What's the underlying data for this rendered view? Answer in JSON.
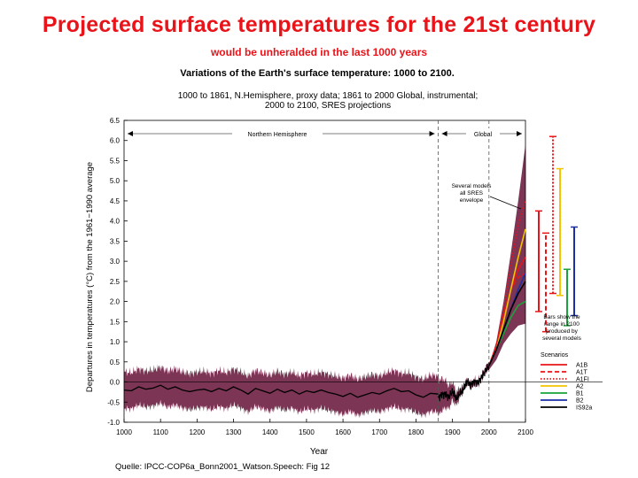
{
  "slide": {
    "title": "Projected surface temperatures for the 21st century",
    "subtitle": "would be unheralded in the last 1000 years",
    "source": "Quelle: IPCC-COP6a_Bonn2001_Watson.Speech: Fig 12"
  },
  "chart_data": {
    "type": "line",
    "title": "Variations of the Earth's surface temperature: 1000 to 2100.",
    "subtitle_lines": [
      "1000 to 1861, N.Hemisphere, proxy data; 1861 to 2000 Global, instrumental;",
      "2000 to 2100, SRES projections"
    ],
    "xlabel": "Year",
    "ylabel": "Departures in temperatures (°C) from the 1961−1990 average",
    "xlim": [
      1000,
      2100
    ],
    "ylim": [
      -1.0,
      6.5
    ],
    "x_ticks": [
      1000,
      1100,
      1200,
      1300,
      1400,
      1500,
      1600,
      1700,
      1800,
      1900,
      2000,
      2100
    ],
    "y_ticks": [
      -1.0,
      -0.5,
      0.0,
      0.5,
      1.0,
      1.5,
      2.0,
      2.5,
      3.0,
      3.5,
      4.0,
      4.5,
      5.0,
      5.5,
      6.0,
      6.5
    ],
    "period_labels": {
      "left": "Northern Hemisphere",
      "right": "Global"
    },
    "reference_lines": {
      "dashed_years": [
        1861,
        2000
      ],
      "zero_line": 0.0
    },
    "annotation_envelope": "Several models all SRES envelope",
    "annotation_bars": "Bars show the range in 2100 produced by several models",
    "band_color": "#7d3555",
    "proxy_series": {
      "x": [
        1000,
        1020,
        1040,
        1060,
        1080,
        1100,
        1120,
        1140,
        1160,
        1180,
        1200,
        1220,
        1240,
        1260,
        1280,
        1300,
        1320,
        1340,
        1360,
        1380,
        1400,
        1420,
        1440,
        1460,
        1480,
        1500,
        1520,
        1540,
        1560,
        1580,
        1600,
        1620,
        1640,
        1660,
        1680,
        1700,
        1720,
        1740,
        1760,
        1780,
        1800,
        1820,
        1840,
        1861
      ],
      "y": [
        -0.2,
        -0.22,
        -0.12,
        -0.18,
        -0.15,
        -0.08,
        -0.18,
        -0.12,
        -0.2,
        -0.24,
        -0.2,
        -0.18,
        -0.24,
        -0.16,
        -0.22,
        -0.12,
        -0.2,
        -0.3,
        -0.16,
        -0.22,
        -0.28,
        -0.18,
        -0.26,
        -0.2,
        -0.3,
        -0.22,
        -0.26,
        -0.2,
        -0.26,
        -0.3,
        -0.36,
        -0.28,
        -0.38,
        -0.32,
        -0.26,
        -0.3,
        -0.22,
        -0.16,
        -0.24,
        -0.22,
        -0.32,
        -0.38,
        -0.28,
        -0.3
      ],
      "uncertainty_halfwidth": 0.45
    },
    "instrumental_series": {
      "x": [
        1861,
        1870,
        1880,
        1890,
        1900,
        1910,
        1920,
        1930,
        1940,
        1950,
        1960,
        1970,
        1980,
        1990,
        2000
      ],
      "y": [
        -0.4,
        -0.32,
        -0.3,
        -0.38,
        -0.22,
        -0.42,
        -0.28,
        -0.18,
        0.02,
        -0.08,
        0.0,
        -0.02,
        0.12,
        0.28,
        0.4
      ]
    },
    "projection_envelope": {
      "x": [
        2000,
        2020,
        2040,
        2060,
        2080,
        2100
      ],
      "low": [
        0.3,
        0.55,
        0.95,
        1.2,
        1.4,
        1.45
      ],
      "high": [
        0.4,
        1.0,
        2.0,
        3.2,
        4.5,
        5.9
      ]
    },
    "series": [
      {
        "name": "A1B",
        "color": "#e8141a",
        "dash": "solid",
        "x": [
          2000,
          2020,
          2040,
          2060,
          2080,
          2100
        ],
        "y": [
          0.4,
          0.9,
          1.6,
          2.3,
          2.8,
          3.1
        ],
        "range_2100": [
          1.75,
          4.25
        ]
      },
      {
        "name": "A1T",
        "color": "#e8141a",
        "dash": "dashed",
        "x": [
          2000,
          2020,
          2040,
          2060,
          2080,
          2100
        ],
        "y": [
          0.4,
          0.9,
          1.7,
          2.3,
          2.6,
          2.7
        ],
        "range_2100": [
          1.25,
          3.7
        ]
      },
      {
        "name": "A1FI",
        "color": "#e8141a",
        "dash": "dotted",
        "x": [
          2000,
          2020,
          2040,
          2060,
          2080,
          2100
        ],
        "y": [
          0.4,
          0.9,
          1.8,
          2.9,
          3.9,
          4.5
        ],
        "range_2100": [
          2.2,
          6.1
        ]
      },
      {
        "name": "A2",
        "color": "#f2c500",
        "dash": "solid",
        "x": [
          2000,
          2020,
          2040,
          2060,
          2080,
          2100
        ],
        "y": [
          0.4,
          0.8,
          1.5,
          2.3,
          3.1,
          3.8
        ],
        "range_2100": [
          2.15,
          5.3
        ]
      },
      {
        "name": "B1",
        "color": "#1aa33a",
        "dash": "solid",
        "x": [
          2000,
          2020,
          2040,
          2060,
          2080,
          2100
        ],
        "y": [
          0.4,
          0.8,
          1.2,
          1.6,
          1.9,
          2.0
        ],
        "range_2100": [
          1.4,
          2.8
        ]
      },
      {
        "name": "B2",
        "color": "#1c2fa6",
        "dash": "solid",
        "x": [
          2000,
          2020,
          2040,
          2060,
          2080,
          2100
        ],
        "y": [
          0.4,
          0.8,
          1.3,
          1.8,
          2.3,
          2.7
        ],
        "range_2100": [
          1.65,
          3.85
        ]
      },
      {
        "name": "IS92a",
        "color": "#000000",
        "dash": "solid",
        "x": [
          2000,
          2020,
          2040,
          2060,
          2080,
          2100
        ],
        "y": [
          0.4,
          0.8,
          1.3,
          1.8,
          2.2,
          2.5
        ]
      }
    ],
    "legend_title": "Scenarios",
    "legend_position": "right"
  }
}
